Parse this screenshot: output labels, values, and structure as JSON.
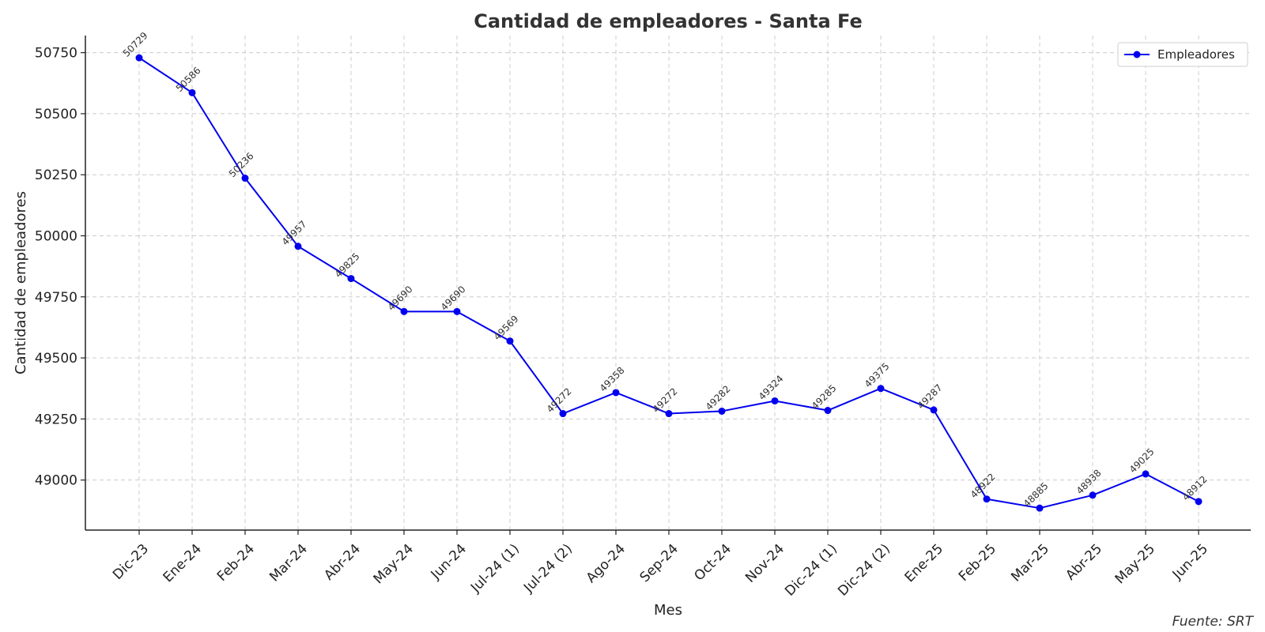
{
  "chart_data": {
    "type": "line",
    "title": "Cantidad de empleadores - Santa Fe",
    "xlabel": "Mes",
    "ylabel": "Cantidad de empleadores",
    "categories": [
      "Dic-23",
      "Ene-24",
      "Feb-24",
      "Mar-24",
      "Abr-24",
      "May-24",
      "Jun-24",
      "Jul-24 (1)",
      "Jul-24 (2)",
      "Ago-24",
      "Sep-24",
      "Oct-24",
      "Nov-24",
      "Dic-24 (1)",
      "Dic-24 (2)",
      "Ene-25",
      "Feb-25",
      "Mar-25",
      "Abr-25",
      "May-25",
      "Jun-25"
    ],
    "series": [
      {
        "name": "Empleadores",
        "color": "#0000ee",
        "values": [
          50729,
          50586,
          50236,
          49957,
          49825,
          49690,
          49690,
          49569,
          49272,
          49358,
          49272,
          49282,
          49324,
          49285,
          49375,
          49287,
          48922,
          48885,
          48938,
          49025,
          48912
        ]
      }
    ],
    "yticks": [
      49000,
      49250,
      49500,
      49750,
      50000,
      50250,
      50500,
      50750
    ],
    "ylim": [
      48795,
      50820
    ],
    "grid": true,
    "legend_position": "top-right",
    "source": "Fuente: SRT"
  }
}
